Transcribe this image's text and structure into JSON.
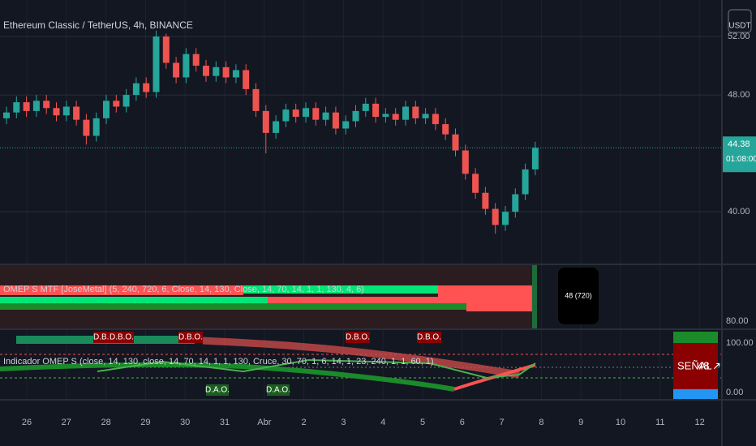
{
  "chart_data": {
    "type": "candlestick",
    "title": "Ethereum Classic / TetherUS, 4h, BINANCE",
    "currency": "USDT",
    "categories": [
      "26",
      "27",
      "28",
      "29",
      "30",
      "31",
      "Abr",
      "2",
      "3",
      "4",
      "5",
      "6",
      "7",
      "8",
      "9",
      "10",
      "11",
      "12"
    ],
    "open": [
      46.4,
      46.8,
      47.5,
      46.9,
      47.6,
      47.1,
      46.6,
      47.2,
      46.3,
      45.2,
      46.4,
      47.6,
      47.2,
      48.0,
      48.8,
      48.2,
      52.0,
      50.2,
      49.2,
      50.8,
      50.0,
      49.3,
      49.9,
      49.2,
      49.7,
      48.4,
      46.9,
      45.4,
      46.2,
      47.0,
      46.5,
      47.1,
      46.3,
      46.8,
      45.7,
      46.2,
      46.9,
      47.4,
      46.5,
      46.7,
      46.3,
      47.2,
      46.4,
      46.7,
      46.0,
      45.3,
      44.2,
      42.6,
      41.3,
      40.2,
      39.1,
      40.0,
      41.2,
      42.9
    ],
    "high": [
      47.2,
      47.9,
      47.9,
      48.0,
      48.0,
      47.5,
      47.6,
      47.6,
      46.7,
      46.8,
      48.0,
      48.0,
      48.4,
      49.2,
      49.2,
      52.4,
      52.2,
      50.6,
      51.2,
      51.2,
      50.4,
      50.3,
      50.3,
      50.1,
      50.1,
      48.8,
      47.3,
      46.6,
      47.4,
      47.4,
      47.5,
      47.5,
      47.2,
      47.2,
      46.6,
      47.3,
      47.8,
      47.8,
      47.1,
      47.1,
      47.6,
      47.6,
      47.1,
      47.1,
      46.4,
      45.7,
      44.6,
      43.0,
      41.7,
      40.6,
      40.4,
      41.6,
      43.3,
      44.8
    ],
    "low": [
      46.0,
      46.4,
      46.5,
      46.5,
      46.7,
      46.2,
      46.2,
      45.9,
      44.6,
      44.8,
      46.0,
      46.8,
      46.8,
      47.6,
      47.8,
      47.8,
      49.8,
      48.8,
      48.8,
      49.6,
      48.9,
      48.9,
      48.8,
      48.8,
      48.0,
      46.5,
      44.0,
      45.0,
      45.8,
      46.1,
      46.1,
      45.9,
      45.9,
      45.3,
      45.3,
      45.8,
      46.5,
      46.1,
      46.1,
      45.9,
      45.9,
      46.0,
      46.0,
      45.6,
      44.9,
      43.8,
      42.2,
      40.9,
      39.8,
      38.5,
      38.7,
      39.6,
      40.8,
      42.5
    ],
    "close": [
      46.8,
      47.5,
      46.9,
      47.6,
      47.1,
      46.6,
      47.2,
      46.3,
      45.2,
      46.4,
      47.6,
      47.2,
      48.0,
      48.8,
      48.2,
      52.0,
      50.2,
      49.2,
      50.8,
      50.0,
      49.3,
      49.9,
      49.2,
      49.7,
      48.4,
      46.9,
      45.4,
      46.2,
      47.0,
      46.5,
      47.1,
      46.3,
      46.8,
      45.7,
      46.2,
      46.9,
      47.4,
      46.5,
      46.7,
      46.3,
      47.2,
      46.4,
      46.7,
      46.0,
      45.3,
      44.2,
      42.6,
      41.3,
      40.2,
      39.1,
      40.0,
      41.2,
      42.9,
      44.38
    ],
    "up_color": "#26a69a",
    "down_color": "#ef5350",
    "ylim": [
      36.4,
      54.5
    ],
    "yticks": [
      {
        "value": 40,
        "label": "40.00"
      },
      {
        "value": 48,
        "label": "48.00"
      },
      {
        "value": 52,
        "label": "52.00"
      }
    ],
    "last_price": 44.38,
    "countdown": "01:08:00",
    "grid": true
  },
  "mtf_pane": {
    "title": "OMEP S MTF [JoseMetal] (5, 240, 720, 6, Close, 14, 130, Close, 14, 70, 14, 1, 1, 130, 4, 6)",
    "badge": "48 (720)",
    "axis_label": "80.00"
  },
  "osc_pane": {
    "title": "Indicador OMEP S (close, 14, 130, close, 14, 70, 14, 1, 1, 130, Cruce, 30, 70, 1, 6, 14, 1, 23, 240, 1, 1, 60, 1)",
    "top_labels": [
      "D.B.O.",
      "D.B.O.",
      "D.B.O.",
      "D.B.O.",
      "D.B.O."
    ],
    "bottom_labels": [
      "D.A.O.",
      "D.A.O."
    ],
    "axis_top": "100.00",
    "axis_bottom": "0.00",
    "signal": "SEÑAL",
    "signal_value": "48 ↗"
  }
}
